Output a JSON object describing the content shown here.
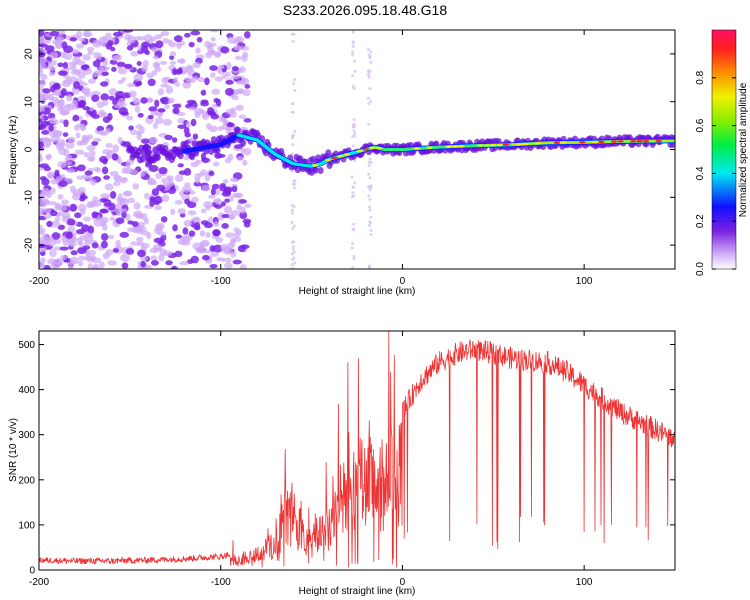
{
  "title": "S233.2026.095.18.48.G18",
  "chart_data": [
    {
      "type": "heatmap",
      "id": "spectrogram",
      "xlabel": "Height of straight line (km)",
      "ylabel": "Frequency (Hz)",
      "xlim": [
        -200,
        150
      ],
      "ylim": [
        -25,
        25
      ],
      "xticks": [
        -200,
        -100,
        0,
        100
      ],
      "xtick_labels": [
        "-200",
        "-100",
        "0",
        "100"
      ],
      "yticks": [
        -20,
        -10,
        0,
        10,
        20
      ],
      "ytick_labels": [
        "-20",
        "-10",
        "0",
        "10",
        "20"
      ],
      "ridge": {
        "x": [
          -145,
          -130,
          -115,
          -100,
          -90,
          -80,
          -70,
          -60,
          -50,
          -45,
          -40,
          -30,
          -20,
          -15,
          -10,
          0,
          20,
          40,
          60,
          80,
          100,
          120,
          150
        ],
        "y": [
          -1,
          -1,
          0,
          1,
          3,
          2,
          -1,
          -3,
          -3.5,
          -3,
          -2,
          -1,
          0,
          0.5,
          0,
          0,
          0.5,
          0.8,
          1,
          1.4,
          1.5,
          1.7,
          1.8
        ]
      },
      "colorbar": {
        "label": "Normalized spectral amplitude",
        "range": [
          0,
          1
        ],
        "ticks": [
          0.0,
          0.2,
          0.4,
          0.6,
          0.8
        ],
        "tick_labels": [
          "0.0",
          "0.2",
          "0.4",
          "0.6",
          "0.8"
        ]
      }
    },
    {
      "type": "line",
      "id": "snr",
      "xlabel": "Height of straight line (km)",
      "ylabel": "SNR (10 * v/v)",
      "xlim": [
        -200,
        150
      ],
      "ylim": [
        0,
        530
      ],
      "xticks": [
        -200,
        -100,
        0,
        100
      ],
      "xtick_labels": [
        "-200",
        "-100",
        "0",
        "100"
      ],
      "yticks": [
        0,
        100,
        200,
        300,
        400,
        500
      ],
      "ytick_labels": [
        "0",
        "100",
        "200",
        "300",
        "400",
        "500"
      ],
      "series": [
        {
          "name": "SNR",
          "color": "#ee3333",
          "x": [
            -200,
            -180,
            -160,
            -140,
            -120,
            -100,
            -90,
            -80,
            -70,
            -65,
            -60,
            -55,
            -50,
            -45,
            -40,
            -35,
            -30,
            -25,
            -20,
            -15,
            -10,
            -5,
            0,
            10,
            20,
            30,
            40,
            50,
            60,
            70,
            80,
            90,
            100,
            110,
            120,
            130,
            140,
            150
          ],
          "y": [
            22,
            20,
            20,
            22,
            25,
            30,
            40,
            55,
            90,
            180,
            200,
            120,
            90,
            140,
            160,
            230,
            260,
            290,
            300,
            280,
            300,
            330,
            350,
            420,
            460,
            480,
            490,
            480,
            470,
            465,
            460,
            440,
            410,
            380,
            350,
            330,
            310,
            290
          ]
        }
      ]
    }
  ]
}
